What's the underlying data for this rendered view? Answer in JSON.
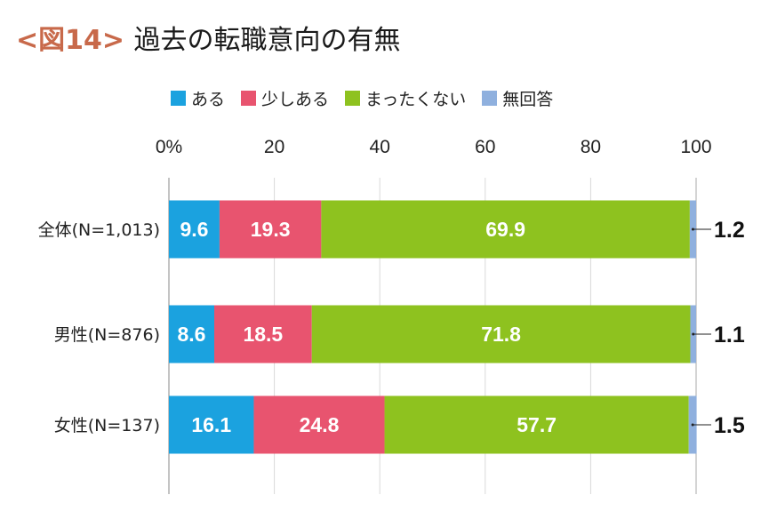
{
  "title": {
    "tag": "<図14>",
    "text": "過去の転職意向の有無"
  },
  "chart_data": {
    "type": "bar",
    "orientation": "horizontal",
    "stacked": true,
    "categories": [
      "全体(N=1,013)",
      "男性(N=876)",
      "女性(N=137)"
    ],
    "series": [
      {
        "name": "ある",
        "color": "#1ba2df",
        "values": [
          9.6,
          8.6,
          16.1
        ]
      },
      {
        "name": "少しある",
        "color": "#e8546f",
        "values": [
          19.3,
          18.5,
          24.8
        ]
      },
      {
        "name": "まったくない",
        "color": "#8ec21f",
        "values": [
          69.9,
          71.8,
          57.7
        ]
      },
      {
        "name": "無回答",
        "color": "#8fb0de",
        "values": [
          1.2,
          1.1,
          1.5
        ]
      }
    ],
    "xlim": [
      0,
      100
    ],
    "ticks": [
      "0%",
      "20",
      "40",
      "60",
      "80",
      "100"
    ],
    "grid": true,
    "legend": "top"
  }
}
